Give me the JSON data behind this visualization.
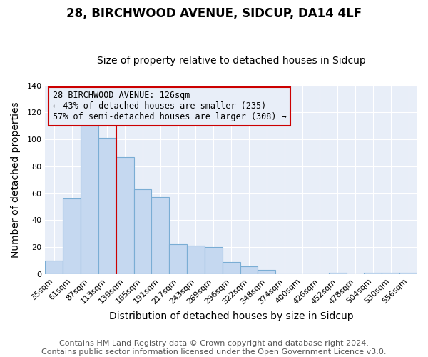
{
  "title": "28, BIRCHWOOD AVENUE, SIDCUP, DA14 4LF",
  "subtitle": "Size of property relative to detached houses in Sidcup",
  "xlabel": "Distribution of detached houses by size in Sidcup",
  "ylabel": "Number of detached properties",
  "bar_labels": [
    "35sqm",
    "61sqm",
    "87sqm",
    "113sqm",
    "139sqm",
    "165sqm",
    "191sqm",
    "217sqm",
    "243sqm",
    "269sqm",
    "296sqm",
    "322sqm",
    "348sqm",
    "374sqm",
    "400sqm",
    "426sqm",
    "452sqm",
    "478sqm",
    "504sqm",
    "530sqm",
    "556sqm"
  ],
  "bar_values": [
    10,
    56,
    113,
    101,
    87,
    63,
    57,
    22,
    21,
    20,
    9,
    6,
    3,
    0,
    0,
    0,
    1,
    0,
    1,
    1,
    1
  ],
  "bar_color": "#c5d8f0",
  "bar_edge_color": "#7aadd4",
  "marker_bin_index": 3,
  "marker_line_color": "#cc0000",
  "annotation_text": "28 BIRCHWOOD AVENUE: 126sqm\n← 43% of detached houses are smaller (235)\n57% of semi-detached houses are larger (308) →",
  "annotation_box_edge_color": "#cc0000",
  "ylim": [
    0,
    140
  ],
  "yticks": [
    0,
    20,
    40,
    60,
    80,
    100,
    120,
    140
  ],
  "footer_line1": "Contains HM Land Registry data © Crown copyright and database right 2024.",
  "footer_line2": "Contains public sector information licensed under the Open Government Licence v3.0.",
  "plot_bg_color": "#e8eef8",
  "figure_bg_color": "#ffffff",
  "grid_color": "#ffffff",
  "title_fontsize": 12,
  "subtitle_fontsize": 10,
  "axis_label_fontsize": 10,
  "tick_fontsize": 8,
  "footer_fontsize": 8,
  "annotation_fontsize": 8.5
}
